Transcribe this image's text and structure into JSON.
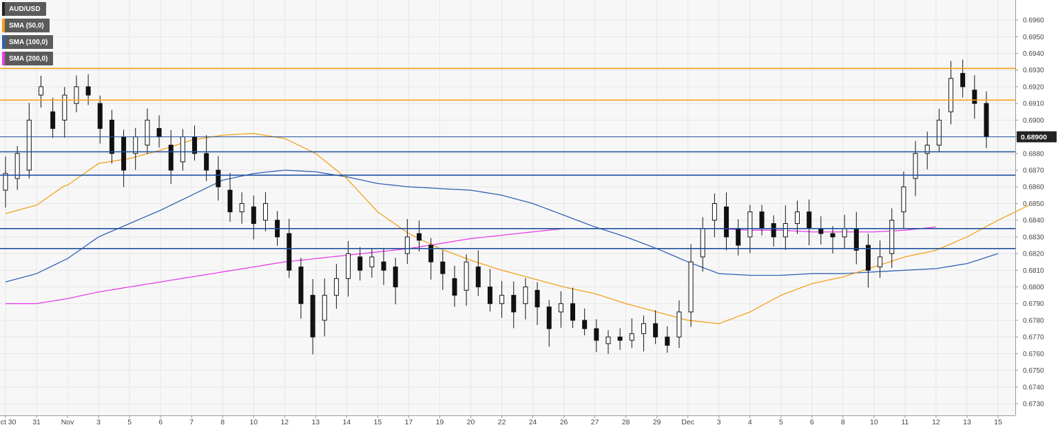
{
  "chart_data": {
    "type": "candlestick",
    "symbol": "AUD/USD",
    "legend": [
      {
        "label": "AUD/USD",
        "color": "#222222"
      },
      {
        "label": "SMA (50,0)",
        "color": "#f5a01a"
      },
      {
        "label": "SMA (100,0)",
        "color": "#2f62b5"
      },
      {
        "label": "SMA (200,0)",
        "color": "#e83ee8"
      }
    ],
    "y_axis": {
      "range": [
        0.6723,
        0.6972
      ],
      "ticks": [
        "0.6960",
        "0.6950",
        "0.6940",
        "0.6930",
        "0.6920",
        "0.6910",
        "0.6900",
        "0.6890",
        "0.6880",
        "0.6870",
        "0.6860",
        "0.6850",
        "0.6840",
        "0.6830",
        "0.6820",
        "0.6810",
        "0.6800",
        "0.6790",
        "0.6780",
        "0.6770",
        "0.6760",
        "0.6750",
        "0.6740",
        "0.6730"
      ]
    },
    "x_axis": {
      "labels": [
        "Oct 30",
        "31",
        "Nov",
        "3",
        "5",
        "6",
        "7",
        "8",
        "10",
        "12",
        "13",
        "14",
        "15",
        "17",
        "19",
        "20",
        "22",
        "24",
        "26",
        "27",
        "28",
        "29",
        "Dec",
        "3",
        "4",
        "5",
        "6",
        "8",
        "10",
        "11",
        "12",
        "13",
        "15"
      ]
    },
    "current_price": {
      "value": 0.689,
      "label": "0.68900"
    },
    "resistance_levels": [
      0.6931,
      0.6912
    ],
    "support_levels": [
      0.689,
      0.6881,
      0.6867,
      0.6835,
      0.6823
    ],
    "anchors": [
      [
        0.6858,
        0.6868
      ],
      [
        0.6865,
        0.688
      ],
      [
        0.687,
        0.69
      ],
      [
        0.6915,
        0.692
      ],
      [
        0.6905,
        0.6895
      ],
      [
        0.69,
        0.6915
      ],
      [
        0.691,
        0.692
      ],
      [
        0.692,
        0.6915
      ],
      [
        0.691,
        0.6895
      ],
      [
        0.69,
        0.688
      ],
      [
        0.689,
        0.687
      ],
      [
        0.688,
        0.689
      ],
      [
        0.6885,
        0.69
      ],
      [
        0.6895,
        0.689
      ],
      [
        0.6885,
        0.687
      ],
      [
        0.6875,
        0.689
      ],
      [
        0.689,
        0.688
      ],
      [
        0.688,
        0.687
      ],
      [
        0.687,
        0.686
      ],
      [
        0.6858,
        0.6845
      ],
      [
        0.6845,
        0.685
      ],
      [
        0.6848,
        0.6838
      ],
      [
        0.684,
        0.685
      ],
      [
        0.684,
        0.683
      ],
      [
        0.6832,
        0.681
      ],
      [
        0.6812,
        0.679
      ],
      [
        0.6795,
        0.677
      ],
      [
        0.678,
        0.6795
      ],
      [
        0.6795,
        0.6805
      ],
      [
        0.6805,
        0.682
      ],
      [
        0.6818,
        0.681
      ],
      [
        0.6812,
        0.6818
      ],
      [
        0.6815,
        0.681
      ],
      [
        0.6812,
        0.68
      ],
      [
        0.682,
        0.683
      ],
      [
        0.6832,
        0.6828
      ],
      [
        0.6825,
        0.6815
      ],
      [
        0.6815,
        0.6808
      ],
      [
        0.6805,
        0.6795
      ],
      [
        0.6798,
        0.6815
      ],
      [
        0.6812,
        0.68
      ],
      [
        0.68,
        0.679
      ],
      [
        0.679,
        0.6795
      ],
      [
        0.6795,
        0.6785
      ],
      [
        0.679,
        0.68
      ],
      [
        0.6798,
        0.6788
      ],
      [
        0.6788,
        0.6775
      ],
      [
        0.6785,
        0.679
      ],
      [
        0.679,
        0.678
      ],
      [
        0.678,
        0.6775
      ],
      [
        0.6775,
        0.6768
      ],
      [
        0.6766,
        0.677
      ],
      [
        0.677,
        0.6768
      ],
      [
        0.6768,
        0.6772
      ],
      [
        0.6772,
        0.6778
      ],
      [
        0.6778,
        0.677
      ],
      [
        0.677,
        0.6765
      ],
      [
        0.677,
        0.6785
      ],
      [
        0.6785,
        0.6815
      ],
      [
        0.6818,
        0.6835
      ],
      [
        0.684,
        0.685
      ],
      [
        0.6848,
        0.683
      ],
      [
        0.6835,
        0.6825
      ],
      [
        0.683,
        0.6845
      ],
      [
        0.6845,
        0.6835
      ],
      [
        0.6838,
        0.683
      ],
      [
        0.683,
        0.6838
      ],
      [
        0.6838,
        0.6845
      ],
      [
        0.6845,
        0.6835
      ],
      [
        0.6835,
        0.6832
      ],
      [
        0.6832,
        0.683
      ],
      [
        0.683,
        0.6835
      ],
      [
        0.6835,
        0.6822
      ],
      [
        0.6825,
        0.681
      ],
      [
        0.6812,
        0.6818
      ],
      [
        0.682,
        0.684
      ],
      [
        0.6845,
        0.686
      ],
      [
        0.6865,
        0.688
      ],
      [
        0.688,
        0.6885
      ],
      [
        0.6885,
        0.69
      ],
      [
        0.6905,
        0.6925
      ],
      [
        0.6928,
        0.692
      ],
      [
        0.6918,
        0.691
      ],
      [
        0.691,
        0.689
      ]
    ],
    "sma50": [
      [
        0.6844,
        0.6849
      ],
      [
        0.6849,
        0.6862
      ],
      [
        0.6861,
        0.6874
      ],
      [
        0.6874,
        0.6877
      ],
      [
        0.6877,
        0.6882
      ],
      [
        0.6882,
        0.6888
      ],
      [
        0.6888,
        0.6891
      ],
      [
        0.6891,
        0.6892
      ],
      [
        0.6892,
        0.6889
      ],
      [
        0.6889,
        0.688
      ],
      [
        0.688,
        0.6865
      ],
      [
        0.6865,
        0.6845
      ],
      [
        0.6845,
        0.6832
      ],
      [
        0.6832,
        0.6823
      ],
      [
        0.6823,
        0.6816
      ],
      [
        0.6816,
        0.681
      ],
      [
        0.681,
        0.6805
      ],
      [
        0.6805,
        0.68
      ],
      [
        0.68,
        0.6796
      ],
      [
        0.6796,
        0.679
      ],
      [
        0.679,
        0.6785
      ],
      [
        0.6785,
        0.678
      ],
      [
        0.678,
        0.6778
      ],
      [
        0.6778,
        0.6785
      ],
      [
        0.6785,
        0.6795
      ],
      [
        0.6795,
        0.6802
      ],
      [
        0.6802,
        0.6806
      ],
      [
        0.6806,
        0.6812
      ],
      [
        0.6812,
        0.6818
      ],
      [
        0.6818,
        0.6822
      ],
      [
        0.6822,
        0.683
      ],
      [
        0.683,
        0.684
      ],
      [
        0.684,
        0.6849
      ]
    ],
    "sma100": [
      [
        0.6803,
        0.6808
      ],
      [
        0.6808,
        0.6817
      ],
      [
        0.6817,
        0.683
      ],
      [
        0.683,
        0.6838
      ],
      [
        0.6838,
        0.6846
      ],
      [
        0.6846,
        0.6855
      ],
      [
        0.6855,
        0.6864
      ],
      [
        0.6864,
        0.6868
      ],
      [
        0.6868,
        0.687
      ],
      [
        0.687,
        0.6869
      ],
      [
        0.6869,
        0.6866
      ],
      [
        0.6866,
        0.6862
      ],
      [
        0.6862,
        0.686
      ],
      [
        0.686,
        0.6859
      ],
      [
        0.6859,
        0.6858
      ],
      [
        0.6858,
        0.6855
      ],
      [
        0.6855,
        0.685
      ],
      [
        0.685,
        0.6843
      ],
      [
        0.6843,
        0.6836
      ],
      [
        0.6836,
        0.683
      ],
      [
        0.683,
        0.6823
      ],
      [
        0.6823,
        0.6815
      ],
      [
        0.6815,
        0.6808
      ],
      [
        0.6808,
        0.6807
      ],
      [
        0.6807,
        0.6807
      ],
      [
        0.6807,
        0.6808
      ],
      [
        0.6808,
        0.6808
      ],
      [
        0.6808,
        0.6809
      ],
      [
        0.6809,
        0.681
      ],
      [
        0.681,
        0.6811
      ],
      [
        0.6811,
        0.6814
      ],
      [
        0.6814,
        0.682
      ]
    ],
    "sma200": [
      [
        0.679,
        0.679
      ],
      [
        0.679,
        0.6793
      ],
      [
        0.6793,
        0.6797
      ],
      [
        0.6797,
        0.68
      ],
      [
        0.68,
        0.6803
      ],
      [
        0.6803,
        0.6806
      ],
      [
        0.6806,
        0.6809
      ],
      [
        0.6809,
        0.6812
      ],
      [
        0.6812,
        0.6815
      ],
      [
        0.6815,
        0.6817
      ],
      [
        0.6817,
        0.6819
      ],
      [
        0.6819,
        0.6821
      ],
      [
        0.6821,
        0.6823
      ],
      [
        0.6823,
        0.6826
      ],
      [
        0.6826,
        0.6829
      ],
      [
        0.6829,
        0.6831
      ],
      [
        0.6831,
        0.6833
      ],
      [
        0.6833,
        0.6835
      ],
      [
        0.6835,
        0.6835
      ],
      [
        0.6835,
        0.6835
      ],
      [
        0.6835,
        0.6835
      ],
      [
        0.6835,
        0.6835
      ],
      [
        0.6835,
        0.6835
      ],
      [
        0.6835,
        0.6834
      ],
      [
        0.6834,
        0.6834
      ],
      [
        0.6834,
        0.6833
      ],
      [
        0.6833,
        0.6833
      ],
      [
        0.6833,
        0.6833
      ],
      [
        0.6833,
        0.6834
      ],
      [
        0.6834,
        0.6836
      ]
    ],
    "colors": {
      "up_body": "#ffffff",
      "down_body": "#111111",
      "wick": "#111111",
      "resistance": "#f5a01a",
      "support": "#1c4f9c",
      "price_tag_bg": "#222222",
      "price_tag_fg": "#ffffff",
      "grid": "#e6e6e6",
      "plot_bg": "#f7f7f7"
    }
  }
}
